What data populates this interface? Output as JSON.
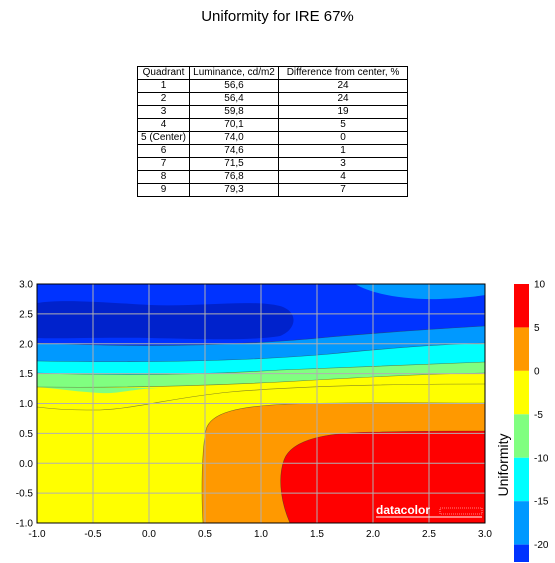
{
  "title": "Uniformity for IRE 67%",
  "table": {
    "headers": [
      "Quadrant",
      "Luminance, cd/m2",
      "Difference from center, %"
    ],
    "rows": [
      [
        "1",
        "56,6",
        "24"
      ],
      [
        "2",
        "56,4",
        "24"
      ],
      [
        "3",
        "59,8",
        "19"
      ],
      [
        "4",
        "70,1",
        "5"
      ],
      [
        "5 (Center)",
        "74,0",
        "0"
      ],
      [
        "6",
        "74,6",
        "1"
      ],
      [
        "7",
        "71,5",
        "3"
      ],
      [
        "8",
        "76,8",
        "4"
      ],
      [
        "9",
        "79,3",
        "7"
      ]
    ]
  },
  "logo_text": "datacolor",
  "chart_data": {
    "type": "heatmap",
    "subtype": "filled-contour",
    "title": "Uniformity for IRE 67%",
    "xlabel": "",
    "ylabel": "",
    "xlim": [
      -1.0,
      3.0
    ],
    "ylim": [
      -1.0,
      3.0
    ],
    "x_ticks": [
      "-1.0",
      "-0.5",
      "0.0",
      "0.5",
      "1.0",
      "1.5",
      "2.0",
      "2.5",
      "3.0"
    ],
    "y_ticks": [
      "3.0",
      "2.5",
      "2.0",
      "1.5",
      "1.0",
      "0.5",
      "0.0",
      "-0.5",
      "-1.0"
    ],
    "grid": true,
    "colorbar": {
      "label": "Uniformity",
      "range": [
        -22,
        10
      ],
      "ticks": [
        "10",
        "5",
        "0",
        "-5",
        "-10",
        "-15",
        "-20"
      ],
      "levels": [
        {
          "from": 5,
          "to": 10,
          "color": "#ff0000"
        },
        {
          "from": 0,
          "to": 5,
          "color": "#ff9900"
        },
        {
          "from": -5,
          "to": 0,
          "color": "#ffff00"
        },
        {
          "from": -10,
          "to": -5,
          "color": "#80ff80"
        },
        {
          "from": -15,
          "to": -10,
          "color": "#00ffff"
        },
        {
          "from": -20,
          "to": -15,
          "color": "#0099ff"
        },
        {
          "from": -22,
          "to": -20,
          "color": "#0033ff"
        }
      ]
    },
    "extra_colors": {
      "deepest": "#0022cc",
      "grid": "#b0b0b0"
    },
    "quadrants": [
      {
        "id": 1,
        "difference_pct": -24
      },
      {
        "id": 2,
        "difference_pct": -24
      },
      {
        "id": 3,
        "difference_pct": -19
      },
      {
        "id": 4,
        "difference_pct": -5
      },
      {
        "id": 5,
        "difference_pct": 0
      },
      {
        "id": 6,
        "difference_pct": 1
      },
      {
        "id": 7,
        "difference_pct": -3
      },
      {
        "id": 8,
        "difference_pct": 4
      },
      {
        "id": 9,
        "difference_pct": 7
      }
    ]
  }
}
